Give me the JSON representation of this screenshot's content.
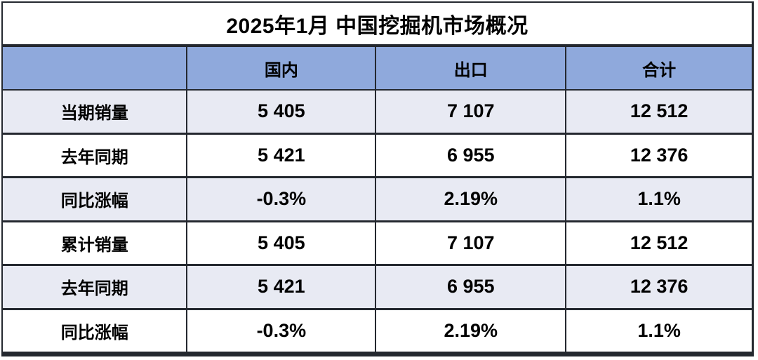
{
  "chart_data": {
    "type": "table",
    "title": "2025年1月 中国挖掘机市场概况",
    "columns": [
      "",
      "国内",
      "出口",
      "合计"
    ],
    "rows": [
      [
        "当期销量",
        "5 405",
        "7 107",
        "12 512"
      ],
      [
        "去年同期",
        "5 421",
        "6 955",
        "12 376"
      ],
      [
        "同比涨幅",
        "-0.3%",
        "2.19%",
        "1.1%"
      ],
      [
        "累计销量",
        "5 405",
        "7 107",
        "12 512"
      ],
      [
        "去年同期",
        "5 421",
        "6 955",
        "12 376"
      ],
      [
        "同比涨幅",
        "-0.3%",
        "2.19%",
        "1.1%"
      ]
    ],
    "layout": {
      "legend": "none",
      "grid": "on",
      "banded_rows": true
    }
  },
  "colors": {
    "header_bg": "#8FA9DC",
    "banded_row_bg": "#E8EAF3",
    "plain_row_bg": "#FFFFFF",
    "border": "#24282F",
    "text": "#000000"
  }
}
